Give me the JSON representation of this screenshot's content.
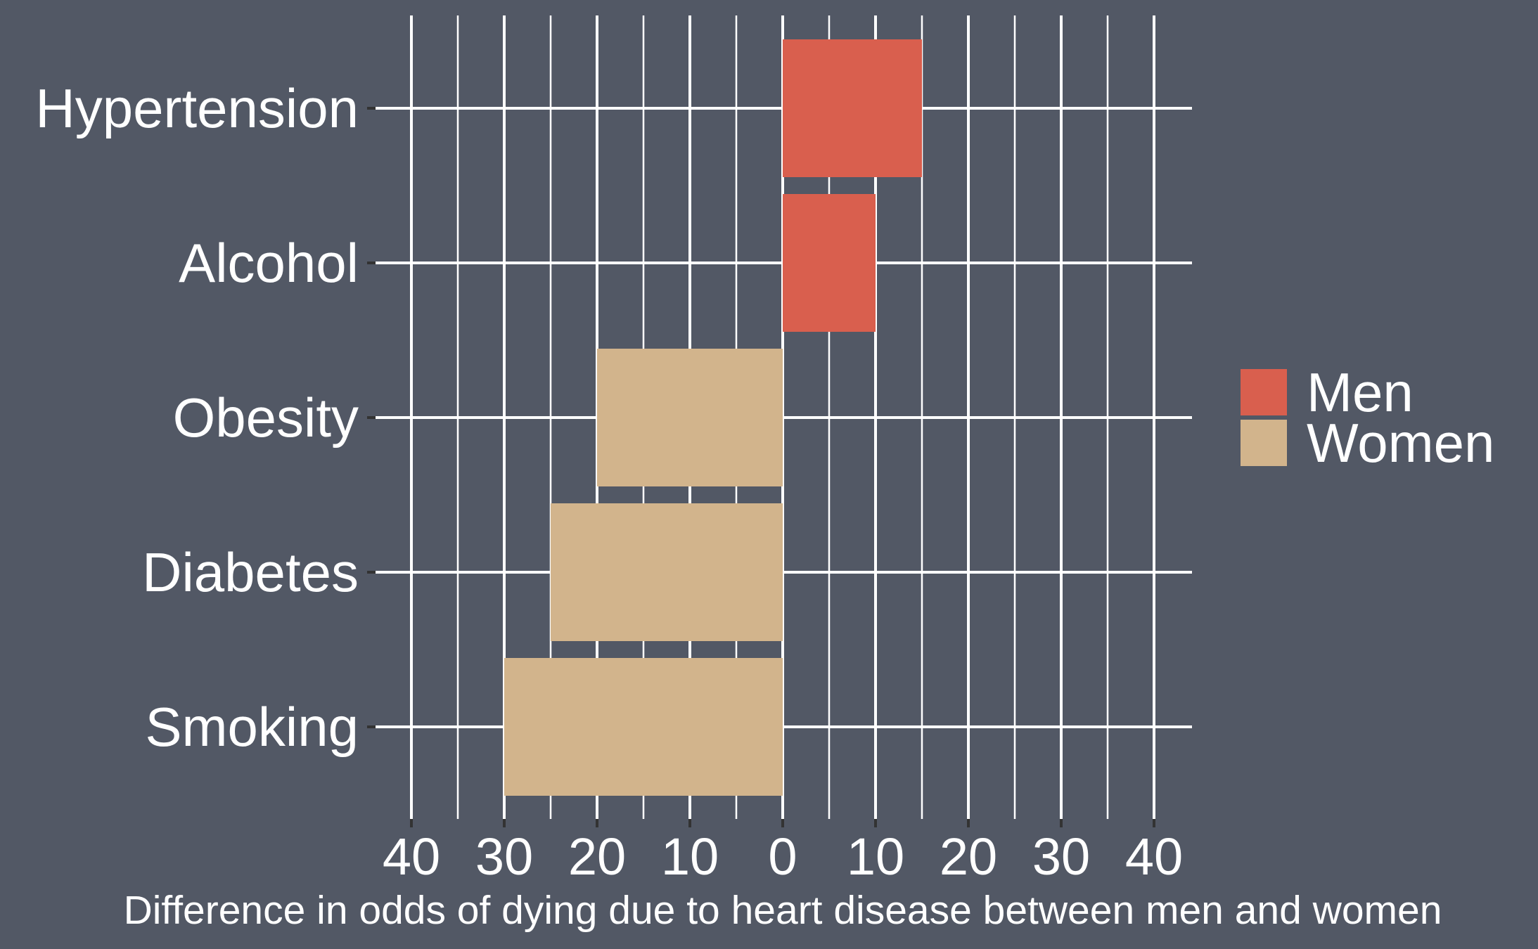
{
  "chart_data": {
    "type": "bar",
    "orientation": "horizontal",
    "categories": [
      "Hypertension",
      "Alcohol",
      "Obesity",
      "Diabetes",
      "Smoking"
    ],
    "series": [
      {
        "name": "Men",
        "values": [
          15,
          10,
          0,
          0,
          0
        ],
        "color": "#D95F4E"
      },
      {
        "name": "Women",
        "values": [
          0,
          0,
          -20,
          -25,
          -30
        ],
        "color": "#D2B48C"
      }
    ],
    "xlim": [
      -40,
      40
    ],
    "xticks": [
      -40,
      -30,
      -20,
      -10,
      0,
      10,
      20,
      30,
      40
    ],
    "xtick_labels": [
      "40",
      "30",
      "20",
      "10",
      "0",
      "10",
      "20",
      "30",
      "40"
    ],
    "xlabel": "Difference in odds of dying due to heart disease between men and women",
    "ylabel": "",
    "title": "",
    "grid": true,
    "legend": {
      "placement": "right",
      "entries": [
        "Men",
        "Women"
      ]
    },
    "background": "#525865"
  }
}
